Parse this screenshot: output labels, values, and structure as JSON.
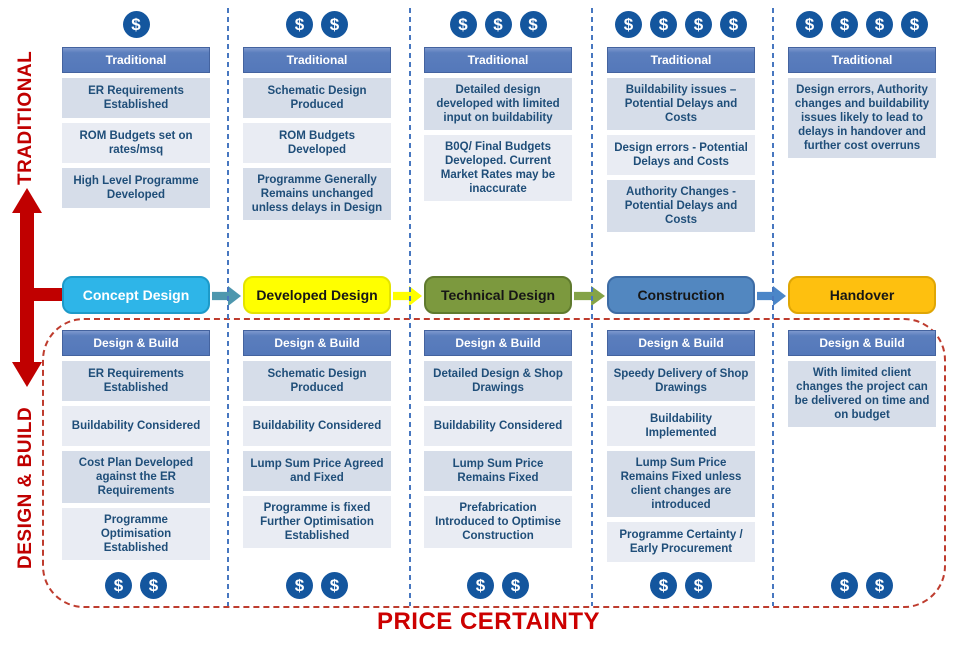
{
  "sidebar": {
    "top_label": "TRADITIONAL",
    "bottom_label": "DESIGN & BUILD"
  },
  "footer": {
    "label": "PRICE CERTAINTY"
  },
  "dollar_symbol": "$",
  "colors": {
    "red_accent": "#C00000",
    "dashed_outline_red": "#BE3C2E",
    "divider_blue": "#4777C0",
    "dollar_blue": "#14569E",
    "card_header_blue": "#5B7EBD",
    "item_row_dark": "#D6DDE9",
    "item_row_light": "#E9ECF3",
    "item_text_blue": "#1F4E79"
  },
  "phases": [
    {
      "name": "Concept Design",
      "fill": "#2EB5E8",
      "border": "#1D9AC9",
      "text_color": "#FFFFFF",
      "arrow_to_next": "#4E97AE",
      "traditional": {
        "header": "Traditional",
        "dollar_count": 1,
        "items": [
          "ER Requirements Established",
          "ROM Budgets set on rates/msq",
          "High Level Programme Developed"
        ]
      },
      "design_build": {
        "header": "Design & Build",
        "dollar_count": 2,
        "items": [
          "ER Requirements Established",
          "Buildability Considered",
          "Cost Plan Developed against the ER Requirements",
          "Programme Optimisation Established"
        ]
      }
    },
    {
      "name": "Developed Design",
      "fill": "#FFFF00",
      "border": "#E3E300",
      "text_color": "#161616",
      "arrow_to_next": "#FFFF00",
      "traditional": {
        "header": "Traditional",
        "dollar_count": 2,
        "items": [
          "Schematic Design Produced",
          "ROM Budgets Developed",
          "Programme Generally Remains unchanged unless delays in Design"
        ]
      },
      "design_build": {
        "header": "Design & Build",
        "dollar_count": 2,
        "items": [
          "Schematic Design Produced",
          "Buildability Considered",
          "Lump Sum Price Agreed and Fixed",
          "Programme is fixed Further Optimisation Established"
        ]
      }
    },
    {
      "name": "Technical Design",
      "fill": "#7C993E",
      "border:": "#5F7A2E",
      "border": "#5F7A2E",
      "text_color": "#161616",
      "arrow_to_next": "#84A347",
      "traditional": {
        "header": "Traditional",
        "dollar_count": 3,
        "items": [
          "Detailed design developed with limited input on buildability",
          "B0Q/ Final Budgets Developed. Current Market Rates may be inaccurate"
        ]
      },
      "design_build": {
        "header": "Design & Build",
        "dollar_count": 2,
        "items": [
          "Detailed Design & Shop Drawings",
          "Buildability Considered",
          "Lump Sum Price Remains Fixed",
          "Prefabrication Introduced to Optimise Construction"
        ]
      }
    },
    {
      "name": "Construction",
      "fill": "#5287C0",
      "border": "#3D6CA5",
      "text_color": "#161616",
      "arrow_to_next": "#4B86C8",
      "traditional": {
        "header": "Traditional",
        "dollar_count": 4,
        "items": [
          "Buildability issues – Potential Delays and Costs",
          "Design errors - Potential Delays and Costs",
          "Authority Changes - Potential Delays and Costs"
        ]
      },
      "design_build": {
        "header": "Design & Build",
        "dollar_count": 2,
        "items": [
          "Speedy Delivery of Shop Drawings",
          "Buildability Implemented",
          "Lump Sum Price Remains Fixed unless client changes are introduced",
          "Programme Certainty / Early Procurement"
        ]
      }
    },
    {
      "name": "Handover",
      "fill": "#FEC00F",
      "border": "#DFA605",
      "text_color": "#161616",
      "arrow_to_next": null,
      "traditional": {
        "header": "Traditional",
        "dollar_count": 4,
        "items": [
          "Design errors, Authority changes and buildability issues likely to lead to delays in handover and further cost overruns"
        ]
      },
      "design_build": {
        "header": "Design & Build",
        "dollar_count": 2,
        "items": [
          "With limited client changes the project can be delivered on time and on budget"
        ]
      }
    }
  ]
}
